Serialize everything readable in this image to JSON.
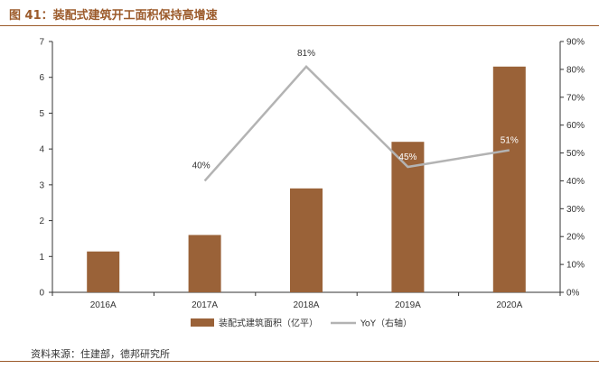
{
  "header": {
    "title": "图 41：装配式建筑开工面积保持高增速"
  },
  "footer": {
    "source": "资料来源：住建部，德邦研究所"
  },
  "colors": {
    "title": "#9b5a2a",
    "bar": "#9a6238",
    "line": "#b3b3b3",
    "axis": "#333333"
  },
  "chart_data": {
    "type": "bar",
    "categories": [
      "2016A",
      "2017A",
      "2018A",
      "2019A",
      "2020A"
    ],
    "series": [
      {
        "name": "装配式建筑面积（亿平）",
        "type": "bar",
        "axis": "left",
        "values": [
          1.14,
          1.6,
          2.9,
          4.2,
          6.3
        ]
      },
      {
        "name": "YoY（右轴）",
        "type": "line",
        "axis": "right",
        "values": [
          null,
          40,
          81,
          45,
          51
        ],
        "labels": [
          "",
          "40%",
          "81%",
          "45%",
          "51%"
        ]
      }
    ],
    "y_left": {
      "ylim": [
        0,
        7
      ],
      "ticks": [
        "0",
        "1",
        "2",
        "3",
        "4",
        "5",
        "6",
        "7"
      ]
    },
    "y_right": {
      "ylim": [
        0,
        90
      ],
      "ticks": [
        "0%",
        "10%",
        "20%",
        "30%",
        "40%",
        "50%",
        "60%",
        "70%",
        "80%",
        "90%"
      ]
    },
    "grid": false,
    "legend_position": "bottom"
  }
}
